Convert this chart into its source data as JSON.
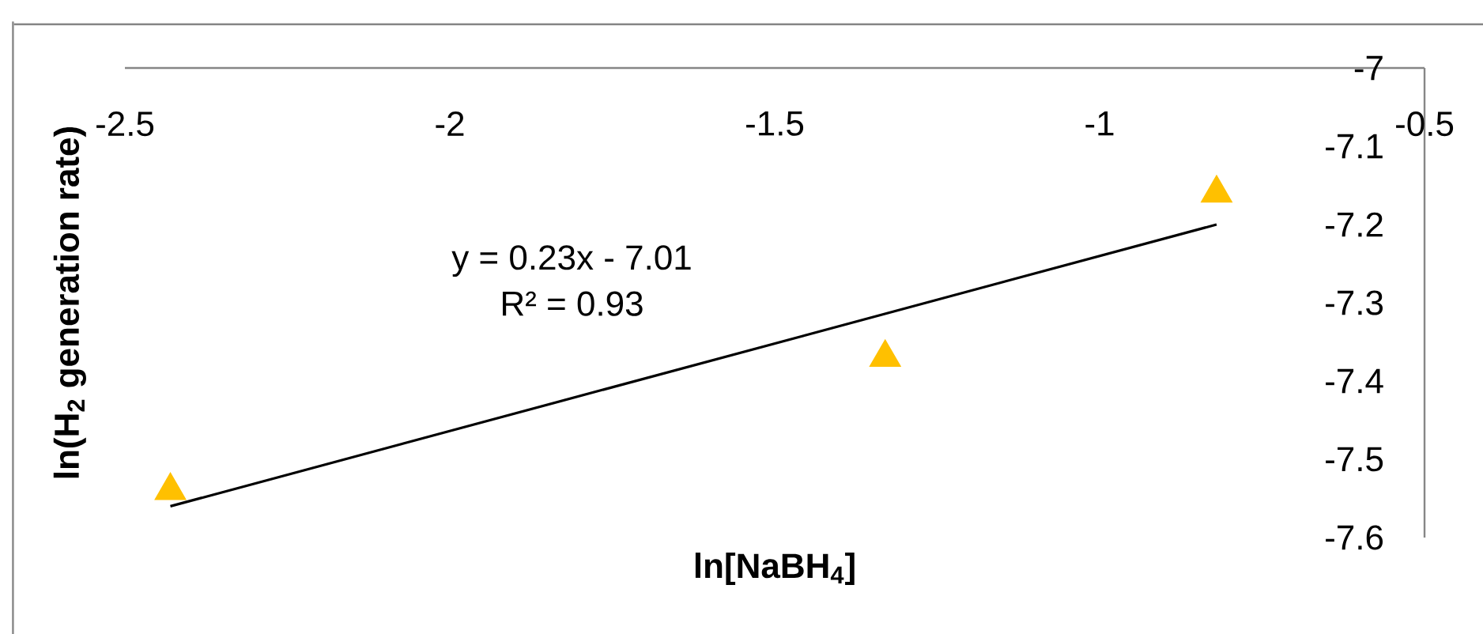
{
  "chart_data": {
    "type": "scatter",
    "xlabel": "ln[NaBH$_{4}$]",
    "ylabel": "ln(H$_{2}$ generation rate)",
    "xlim": [
      -2.5,
      -0.5
    ],
    "ylim": [
      -7.6,
      -7
    ],
    "xticks": [
      -2.5,
      -2,
      -1.5,
      -1,
      -0.5
    ],
    "yticks": [
      -7.6,
      -7.5,
      -7.4,
      -7.3,
      -7.2,
      -7.1,
      -7
    ],
    "annotations": [
      "y = 0.23x - 7.01",
      "R² = 0.93"
    ],
    "series": [
      {
        "color": "#ffc000",
        "marker": "triangle",
        "x": [
          -2.43,
          -1.33,
          -0.82
        ],
        "values": [
          -7.54,
          -7.37,
          -7.16
        ]
      },
      {
        "type": "line",
        "color": "#000000",
        "marker": "none",
        "line_style": "solid",
        "x": [
          -2.43,
          -0.82
        ],
        "values": [
          -7.56,
          -7.2
        ]
      }
    ]
  }
}
